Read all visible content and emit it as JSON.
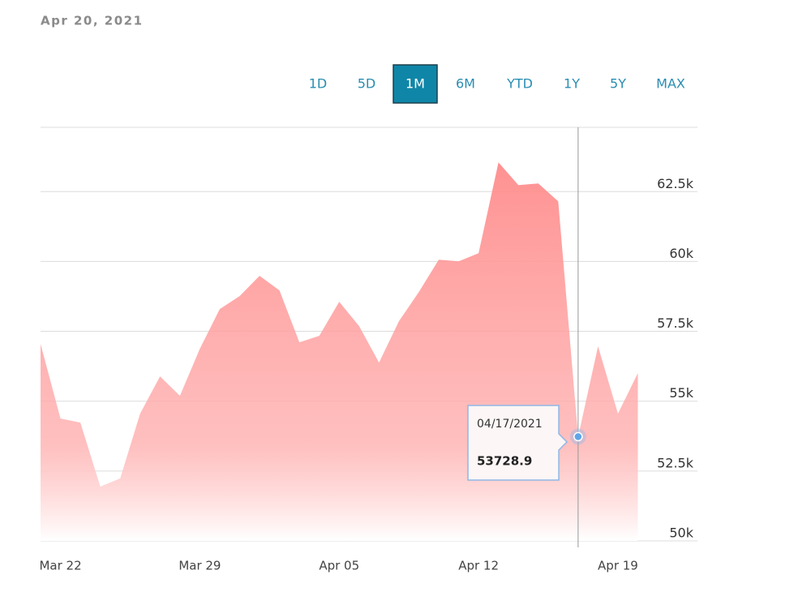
{
  "header": {
    "date": "Apr 20, 2021"
  },
  "ranges": {
    "options": [
      "1D",
      "5D",
      "1M",
      "6M",
      "YTD",
      "1Y",
      "5Y",
      "MAX"
    ],
    "selected": 2
  },
  "chart_data": {
    "type": "area",
    "color": "#ff8c8c",
    "categories": [
      null,
      "Mar 22",
      null,
      null,
      null,
      null,
      null,
      null,
      "Mar 29",
      null,
      null,
      null,
      null,
      null,
      null,
      "Apr 05",
      null,
      null,
      null,
      null,
      null,
      null,
      "Apr 12",
      null,
      null,
      null,
      null,
      null,
      null,
      "Apr 19",
      null
    ],
    "values": [
      57048,
      54379,
      54234,
      51943,
      52233,
      54553,
      55887,
      55191,
      56873,
      58295,
      58759,
      59484,
      58962,
      57106,
      57338,
      58556,
      57686,
      56381,
      57860,
      58904,
      60064,
      60006,
      60296,
      63544,
      62732,
      62790,
      62152,
      53728.9,
      56961,
      54553,
      56003
    ],
    "ylim": [
      50000,
      64800
    ],
    "yticks": [
      {
        "value": 50000,
        "label": "50k"
      },
      {
        "value": 52500,
        "label": "52.5k"
      },
      {
        "value": 55000,
        "label": "55k"
      },
      {
        "value": 57500,
        "label": "57.5k"
      },
      {
        "value": 60000,
        "label": "60k"
      },
      {
        "value": 62500,
        "label": "62.5k"
      }
    ],
    "grid": true,
    "tooltip": {
      "index": 27,
      "label": "04/17/2021"
    }
  }
}
